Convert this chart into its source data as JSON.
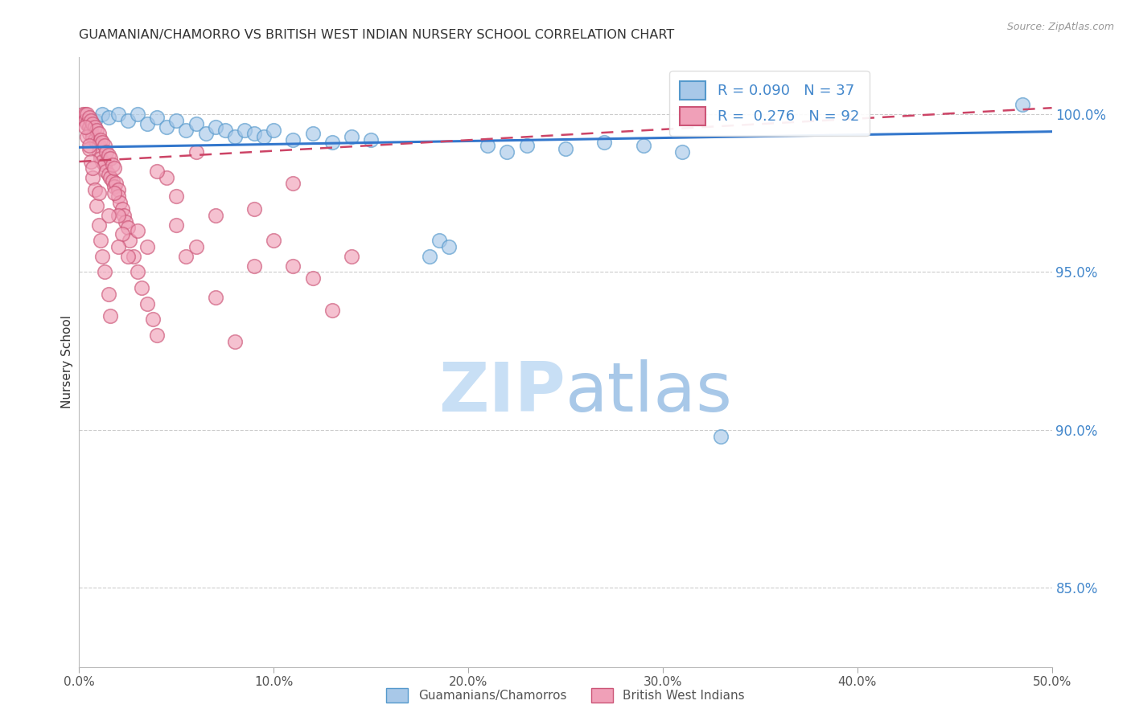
{
  "title": "GUAMANIAN/CHAMORRO VS BRITISH WEST INDIAN NURSERY SCHOOL CORRELATION CHART",
  "source": "Source: ZipAtlas.com",
  "ylabel": "Nursery School",
  "legend_label_blue": "Guamanians/Chamorros",
  "legend_label_pink": "British West Indians",
  "r_blue": 0.09,
  "n_blue": 37,
  "r_pink": 0.276,
  "n_pink": 92,
  "xmin": 0.0,
  "xmax": 50.0,
  "ymin": 82.5,
  "ymax": 101.8,
  "right_yticks": [
    85.0,
    90.0,
    95.0,
    100.0
  ],
  "xtick_labels": [
    "0.0%",
    "10.0%",
    "20.0%",
    "30.0%",
    "40.0%",
    "50.0%"
  ],
  "xtick_values": [
    0.0,
    10.0,
    20.0,
    30.0,
    40.0,
    50.0
  ],
  "color_blue_face": "#a8c8e8",
  "color_blue_edge": "#5599cc",
  "color_pink_face": "#f0a0b8",
  "color_pink_edge": "#cc5577",
  "color_blue_line": "#3377cc",
  "color_pink_line": "#cc4466",
  "color_text_blue": "#4488cc",
  "background_color": "#ffffff",
  "watermark_color": "#ddeeff",
  "blue_points_x": [
    0.8,
    1.2,
    1.5,
    2.0,
    2.5,
    3.0,
    3.5,
    4.0,
    4.5,
    5.0,
    5.5,
    6.0,
    6.5,
    7.0,
    7.5,
    8.0,
    8.5,
    9.0,
    9.5,
    10.0,
    11.0,
    12.0,
    13.0,
    14.0,
    15.0,
    18.0,
    18.5,
    19.0,
    21.0,
    22.0,
    23.0,
    25.0,
    27.0,
    29.0,
    31.0,
    33.0,
    48.5
  ],
  "blue_points_y": [
    99.8,
    100.0,
    99.9,
    100.0,
    99.8,
    100.0,
    99.7,
    99.9,
    99.6,
    99.8,
    99.5,
    99.7,
    99.4,
    99.6,
    99.5,
    99.3,
    99.5,
    99.4,
    99.3,
    99.5,
    99.2,
    99.4,
    99.1,
    99.3,
    99.2,
    95.5,
    96.0,
    95.8,
    99.0,
    98.8,
    99.0,
    98.9,
    99.1,
    99.0,
    98.8,
    89.8,
    100.3
  ],
  "pink_points_x": [
    0.2,
    0.3,
    0.3,
    0.4,
    0.4,
    0.5,
    0.5,
    0.5,
    0.6,
    0.6,
    0.7,
    0.7,
    0.8,
    0.8,
    0.9,
    0.9,
    1.0,
    1.0,
    1.0,
    1.1,
    1.1,
    1.2,
    1.2,
    1.3,
    1.3,
    1.4,
    1.4,
    1.5,
    1.5,
    1.6,
    1.6,
    1.7,
    1.7,
    1.8,
    1.8,
    1.9,
    2.0,
    2.0,
    2.1,
    2.2,
    2.3,
    2.4,
    2.5,
    2.6,
    2.8,
    3.0,
    3.2,
    3.5,
    3.8,
    4.0,
    4.5,
    5.0,
    5.5,
    6.0,
    7.0,
    8.0,
    9.0,
    10.0,
    11.0,
    12.0,
    13.0,
    0.4,
    0.5,
    0.6,
    0.7,
    0.8,
    0.9,
    1.0,
    1.1,
    1.2,
    1.3,
    1.5,
    1.6,
    1.8,
    2.0,
    2.2,
    2.5,
    3.0,
    3.5,
    4.0,
    5.0,
    6.0,
    7.0,
    9.0,
    11.0,
    14.0,
    0.3,
    0.5,
    0.7,
    1.0,
    1.5,
    2.0
  ],
  "pink_points_y": [
    100.0,
    100.0,
    99.8,
    100.0,
    99.7,
    99.9,
    99.6,
    99.4,
    99.8,
    99.5,
    99.7,
    99.3,
    99.6,
    99.2,
    99.5,
    99.1,
    99.4,
    99.0,
    98.8,
    99.2,
    98.6,
    99.1,
    98.5,
    99.0,
    98.4,
    98.8,
    98.2,
    98.7,
    98.1,
    98.6,
    98.0,
    98.4,
    97.9,
    98.3,
    97.7,
    97.8,
    97.6,
    97.4,
    97.2,
    97.0,
    96.8,
    96.6,
    96.4,
    96.0,
    95.5,
    95.0,
    94.5,
    94.0,
    93.5,
    93.0,
    98.0,
    96.5,
    95.5,
    95.8,
    94.2,
    92.8,
    97.0,
    96.0,
    95.2,
    94.8,
    93.8,
    99.3,
    98.9,
    98.5,
    98.0,
    97.6,
    97.1,
    96.5,
    96.0,
    95.5,
    95.0,
    94.3,
    93.6,
    97.5,
    96.8,
    96.2,
    95.5,
    96.3,
    95.8,
    98.2,
    97.4,
    98.8,
    96.8,
    95.2,
    97.8,
    95.5,
    99.6,
    99.0,
    98.3,
    97.5,
    96.8,
    95.8
  ]
}
